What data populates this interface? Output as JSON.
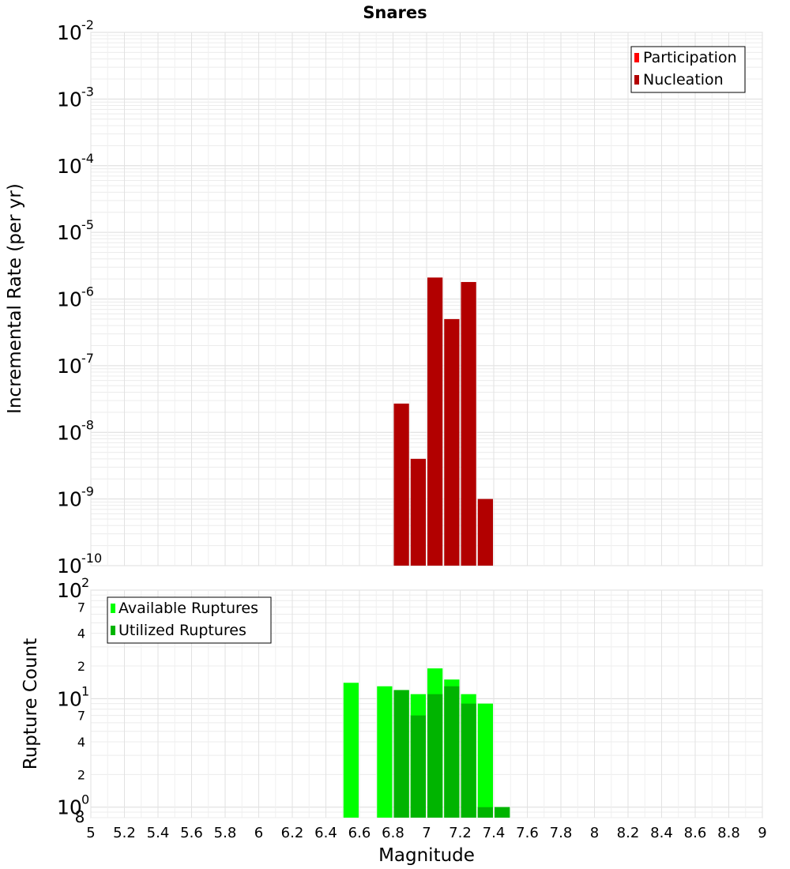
{
  "chart_data": [
    {
      "type": "bar",
      "title": "Snares",
      "ylabel": "Incremental Rate (per yr)",
      "xlabel": "",
      "y_scale": "log",
      "ylim": [
        1e-10,
        0.01
      ],
      "xlim": [
        5,
        9
      ],
      "grid": true,
      "legend_position": "top-right",
      "y_tick_labels": [
        {
          "base": "10",
          "exp": "-2"
        },
        {
          "base": "10",
          "exp": "-3"
        },
        {
          "base": "10",
          "exp": "-4"
        },
        {
          "base": "10",
          "exp": "-5"
        },
        {
          "base": "10",
          "exp": "-6"
        },
        {
          "base": "10",
          "exp": "-7"
        },
        {
          "base": "10",
          "exp": "-8"
        },
        {
          "base": "10",
          "exp": "-9"
        },
        {
          "base": "10",
          "exp": "-10"
        }
      ],
      "legend": [
        "Participation",
        "Nucleation"
      ],
      "series": [
        {
          "name": "Participation",
          "color": "#ff0000",
          "x": [],
          "values": []
        },
        {
          "name": "Nucleation",
          "color": "#b20000",
          "x": [
            6.85,
            6.95,
            7.05,
            7.15,
            7.25,
            7.35
          ],
          "values": [
            2.7e-08,
            4e-09,
            2.1e-06,
            5e-07,
            1.8e-06,
            1e-09
          ]
        }
      ]
    },
    {
      "type": "bar",
      "ylabel": "Rupture Count",
      "xlabel": "Magnitude",
      "y_scale": "log",
      "ylim": [
        0.8,
        100
      ],
      "xlim": [
        5,
        9
      ],
      "grid": true,
      "legend_position": "top-left",
      "y_tick_labels": [
        {
          "base": "10",
          "exp": "2"
        },
        {
          "base": "",
          "exp": "",
          "minor": "7"
        },
        {
          "base": "",
          "exp": "",
          "minor": "4"
        },
        {
          "base": "",
          "exp": "",
          "minor": "2"
        },
        {
          "base": "10",
          "exp": "1"
        },
        {
          "base": "",
          "exp": "",
          "minor": "7"
        },
        {
          "base": "",
          "exp": "",
          "minor": "4"
        },
        {
          "base": "",
          "exp": "",
          "minor": "2"
        },
        {
          "base": "10",
          "exp": "0"
        },
        {
          "base": "",
          "exp": "",
          "minor": "8"
        }
      ],
      "x_tick_labels": [
        "5",
        "5.2",
        "5.4",
        "5.6",
        "5.8",
        "6",
        "6.2",
        "6.4",
        "6.6",
        "6.8",
        "7",
        "7.2",
        "7.4",
        "7.6",
        "7.8",
        "8",
        "8.2",
        "8.4",
        "8.6",
        "8.8",
        "9"
      ],
      "legend": [
        "Available Ruptures",
        "Utilized Ruptures"
      ],
      "series": [
        {
          "name": "Available Ruptures",
          "color": "#00ff00",
          "x": [
            6.55,
            6.75,
            6.85,
            6.95,
            7.05,
            7.15,
            7.25,
            7.35,
            7.45
          ],
          "values": [
            14,
            13,
            12,
            11,
            19,
            15,
            11,
            9,
            1
          ]
        },
        {
          "name": "Utilized Ruptures",
          "color": "#00b400",
          "x": [
            6.85,
            6.95,
            7.05,
            7.15,
            7.25,
            7.35,
            7.45
          ],
          "values": [
            12,
            7,
            11,
            13,
            9,
            1,
            1
          ]
        }
      ]
    }
  ]
}
